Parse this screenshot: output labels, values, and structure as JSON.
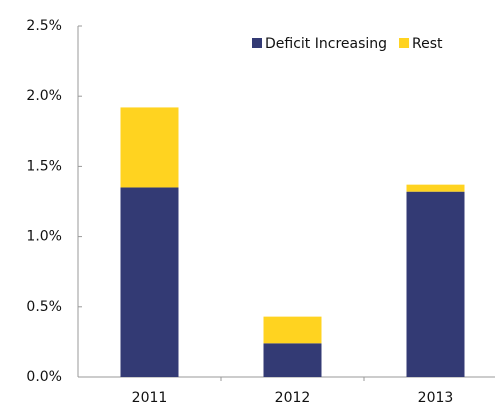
{
  "chart_data": {
    "type": "stacked_bar",
    "categories": [
      "2011",
      "2012",
      "2013"
    ],
    "series": [
      {
        "name": "Deficit Increasing",
        "color": "#333a74",
        "values": [
          1.35,
          0.24,
          1.32
        ]
      },
      {
        "name": "Rest",
        "color": "#ffd320",
        "values": [
          0.57,
          0.19,
          0.05
        ]
      }
    ],
    "ylim": [
      0,
      2.5
    ],
    "yticks": [
      {
        "value": 0,
        "label": "0.0%"
      },
      {
        "value": 0.5,
        "label": "0.5%"
      },
      {
        "value": 1,
        "label": "1.0%"
      },
      {
        "value": 1.5,
        "label": "1.5%"
      },
      {
        "value": 2,
        "label": "2.0%"
      },
      {
        "value": 2.5,
        "label": "2.5%"
      }
    ],
    "legend": "top-right"
  }
}
